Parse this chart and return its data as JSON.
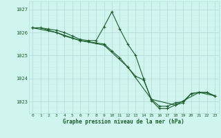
{
  "xlabel": "Graphe pression niveau de la mer (hPa)",
  "bg_color": "#cff5ee",
  "grid_color_major": "#b8ddd8",
  "grid_color_minor": "#c8ece6",
  "line_color": "#1a5c2a",
  "text_color": "#1a5c2a",
  "ylim": [
    1022.5,
    1027.35
  ],
  "xlim": [
    -0.5,
    23.5
  ],
  "yticks": [
    1023,
    1024,
    1025,
    1026,
    1027
  ],
  "xticks": [
    0,
    1,
    2,
    3,
    4,
    5,
    6,
    7,
    8,
    9,
    10,
    11,
    12,
    13,
    14,
    15,
    16,
    17,
    18,
    19,
    20,
    21,
    22,
    23
  ],
  "series": [
    {
      "x": [
        0,
        1,
        2,
        3,
        4,
        5,
        6,
        7,
        8,
        9,
        10,
        11,
        12,
        13,
        14,
        15,
        16,
        17,
        18,
        19,
        20,
        21,
        22,
        23
      ],
      "y": [
        1026.2,
        1026.2,
        1026.1,
        1026.0,
        1025.85,
        1025.75,
        1025.65,
        1025.6,
        1025.55,
        1025.5,
        1025.2,
        1024.9,
        1024.5,
        1024.1,
        1023.95,
        1023.1,
        1022.8,
        1022.8,
        1022.95,
        1023.0,
        1023.35,
        1023.4,
        1023.4,
        1023.25
      ]
    },
    {
      "x": [
        0,
        1,
        2,
        3,
        4,
        5,
        6,
        7,
        8,
        9,
        10,
        11,
        12,
        13,
        14,
        15,
        16,
        17,
        18,
        19,
        20,
        21,
        22,
        23
      ],
      "y": [
        1026.2,
        1026.2,
        1026.15,
        1026.1,
        1026.0,
        1025.85,
        1025.7,
        1025.65,
        1025.65,
        1026.25,
        1026.9,
        1026.15,
        1025.5,
        1025.0,
        1024.0,
        1023.05,
        1022.7,
        1022.7,
        1022.85,
        1022.95,
        1023.35,
        1023.4,
        1023.4,
        1023.25
      ]
    },
    {
      "x": [
        0,
        3,
        6,
        9,
        12,
        15,
        18,
        21,
        23
      ],
      "y": [
        1026.2,
        1026.0,
        1025.65,
        1025.45,
        1024.5,
        1023.1,
        1022.85,
        1023.4,
        1023.25
      ]
    }
  ]
}
